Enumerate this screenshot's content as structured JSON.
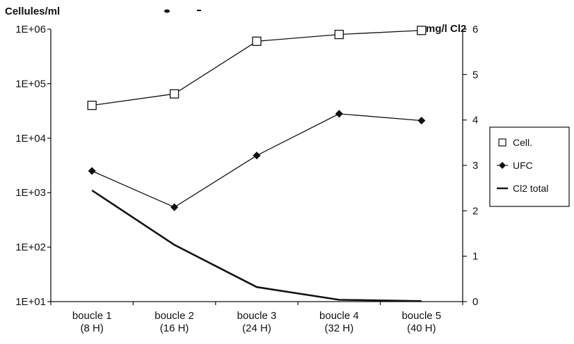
{
  "chart_data": {
    "type": "line",
    "left_axis_title": "Cellules/ml",
    "right_axis_title": "mg/l  Cl2",
    "categories": [
      {
        "line1": "boucle 1",
        "line2": "(8 H)"
      },
      {
        "line1": "boucle 2",
        "line2": "(16 H)"
      },
      {
        "line1": "boucle 3",
        "line2": "(24 H)"
      },
      {
        "line1": "boucle 4",
        "line2": "(32 H)"
      },
      {
        "line1": "boucle 5",
        "line2": "(40 H)"
      }
    ],
    "left_axis": {
      "scale": "log",
      "ylim": [
        10,
        1000000
      ],
      "ticks": [
        {
          "value": 10,
          "label": "1E+01"
        },
        {
          "value": 100,
          "label": "1E+02"
        },
        {
          "value": 1000,
          "label": "1E+03"
        },
        {
          "value": 10000,
          "label": "1E+04"
        },
        {
          "value": 100000,
          "label": "1E+05"
        },
        {
          "value": 1000000,
          "label": "1E+06"
        }
      ]
    },
    "right_axis": {
      "scale": "linear",
      "ylim": [
        0,
        6
      ],
      "ticks": [
        {
          "value": 0,
          "label": "0"
        },
        {
          "value": 1,
          "label": "1"
        },
        {
          "value": 2,
          "label": "2"
        },
        {
          "value": 3,
          "label": "3"
        },
        {
          "value": 4,
          "label": "4"
        },
        {
          "value": 5,
          "label": "5"
        },
        {
          "value": 6,
          "label": "6"
        }
      ]
    },
    "series": [
      {
        "name": "Cell.",
        "axis": "left",
        "marker": "square",
        "values": [
          40000,
          65000,
          600000,
          800000,
          950000
        ]
      },
      {
        "name": "UFC",
        "axis": "left",
        "marker": "diamond",
        "values": [
          2500,
          540,
          4800,
          28000,
          21000
        ]
      },
      {
        "name": "Cl2 total",
        "axis": "right",
        "marker": "none",
        "values": [
          2.45,
          1.25,
          0.32,
          0.04,
          0.01
        ]
      }
    ],
    "legend_position": "right",
    "grid": false
  }
}
